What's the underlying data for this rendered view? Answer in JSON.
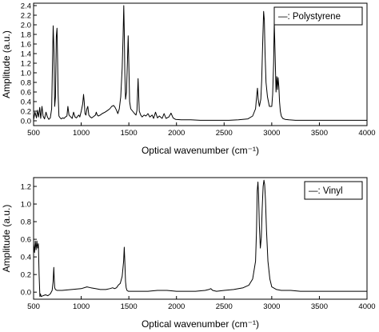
{
  "chart_data": [
    {
      "type": "line",
      "xlabel": "Optical wavenumber (cm⁻¹)",
      "ylabel": "Amplitude (a.u.)",
      "xlim": [
        500,
        4000
      ],
      "ylim": [
        -0.1,
        2.45
      ],
      "xticks": [
        "500",
        "1000",
        "1500",
        "2000",
        "2500",
        "3000",
        "3500",
        "4000"
      ],
      "yticks": [
        "0.0",
        "0.2",
        "0.4",
        "0.6",
        "0.8",
        "1.0",
        "1.2",
        "1.4",
        "1.6",
        "1.8",
        "2.0",
        "2.2",
        "2.4"
      ],
      "grid": false,
      "legend_position": "top-right",
      "series": [
        {
          "name": "—: Polystyrene",
          "x": [
            500,
            515,
            530,
            540,
            552,
            565,
            575,
            588,
            600,
            615,
            630,
            645,
            660,
            675,
            690,
            698,
            706,
            714,
            722,
            730,
            738,
            746,
            752,
            758,
            766,
            775,
            790,
            805,
            820,
            835,
            850,
            860,
            872,
            890,
            905,
            920,
            935,
            950,
            965,
            975,
            985,
            1000,
            1015,
            1025,
            1032,
            1040,
            1050,
            1060,
            1069,
            1080,
            1095,
            1110,
            1130,
            1150,
            1158,
            1168,
            1180,
            1200,
            1220,
            1250,
            1280,
            1300,
            1320,
            1340,
            1355,
            1370,
            1385,
            1400,
            1415,
            1430,
            1440,
            1447,
            1452,
            1458,
            1465,
            1475,
            1485,
            1493,
            1500,
            1508,
            1520,
            1540,
            1560,
            1575,
            1585,
            1597,
            1602,
            1610,
            1625,
            1640,
            1660,
            1680,
            1700,
            1720,
            1745,
            1760,
            1780,
            1800,
            1820,
            1850,
            1870,
            1890,
            1920,
            1943,
            1965,
            1990,
            2050,
            2150,
            2250,
            2400,
            2550,
            2650,
            2750,
            2800,
            2830,
            2843,
            2850,
            2858,
            2870,
            2885,
            2895,
            2905,
            2915,
            2922,
            2930,
            2940,
            2955,
            2975,
            3000,
            3010,
            3020,
            3026,
            3034,
            3045,
            3052,
            3060,
            3067,
            3075,
            3082,
            3090,
            3100,
            3115,
            3140,
            3180,
            3250,
            3400,
            3600,
            3800,
            4000
          ],
          "values": [
            0.02,
            0.18,
            0.06,
            0.22,
            0.08,
            0.28,
            0.05,
            0.3,
            0.1,
            0.04,
            0.18,
            0.08,
            0.03,
            0.06,
            0.25,
            1.15,
            1.98,
            1.45,
            0.3,
            0.5,
            1.75,
            1.93,
            1.3,
            0.55,
            0.1,
            0.07,
            0.04,
            0.06,
            0.05,
            0.08,
            0.1,
            0.3,
            0.12,
            0.08,
            0.05,
            0.18,
            0.08,
            0.06,
            0.1,
            0.12,
            0.08,
            0.2,
            0.35,
            0.55,
            0.38,
            0.15,
            0.12,
            0.25,
            0.3,
            0.12,
            0.08,
            0.06,
            0.09,
            0.12,
            0.18,
            0.12,
            0.1,
            0.12,
            0.15,
            0.18,
            0.22,
            0.25,
            0.3,
            0.32,
            0.28,
            0.22,
            0.15,
            0.25,
            0.5,
            1.1,
            1.8,
            2.4,
            1.9,
            1.0,
            0.45,
            0.6,
            1.25,
            1.77,
            1.2,
            0.4,
            0.25,
            0.2,
            0.15,
            0.12,
            0.22,
            0.88,
            0.6,
            0.2,
            0.12,
            0.08,
            0.12,
            0.1,
            0.15,
            0.08,
            0.12,
            0.05,
            0.18,
            0.06,
            0.1,
            0.05,
            0.15,
            0.05,
            0.08,
            0.16,
            0.06,
            0.03,
            0.02,
            0.02,
            0.01,
            0.01,
            0.01,
            0.02,
            0.04,
            0.1,
            0.25,
            0.55,
            0.68,
            0.45,
            0.3,
            0.45,
            0.85,
            1.6,
            2.28,
            2.1,
            1.4,
            0.8,
            0.5,
            0.3,
            0.3,
            0.55,
            1.2,
            2.05,
            1.5,
            0.6,
            0.92,
            0.65,
            0.9,
            0.7,
            0.4,
            0.2,
            0.1,
            0.05,
            0.03,
            0.02,
            0.01,
            0.01,
            0.01,
            0.01,
            0.01
          ]
        }
      ]
    },
    {
      "type": "line",
      "xlabel": "Optical wavenumber (cm⁻¹)",
      "ylabel": "Amplitude (a.u.)",
      "xlim": [
        500,
        4000
      ],
      "ylim": [
        -0.08,
        1.3
      ],
      "xticks": [
        "500",
        "1000",
        "1500",
        "2000",
        "2500",
        "3000",
        "3500",
        "4000"
      ],
      "yticks": [
        "0.0",
        "0.2",
        "0.4",
        "0.6",
        "0.8",
        "1.0",
        "1.2"
      ],
      "grid": false,
      "legend_position": "top-right",
      "series": [
        {
          "name": "—: Vinyl",
          "x": [
            500,
            510,
            518,
            526,
            534,
            542,
            550,
            558,
            566,
            572,
            580,
            600,
            625,
            650,
            675,
            695,
            705,
            712,
            716,
            722,
            730,
            745,
            800,
            900,
            1000,
            1060,
            1100,
            1150,
            1200,
            1260,
            1300,
            1330,
            1350,
            1370,
            1390,
            1410,
            1430,
            1445,
            1452,
            1458,
            1465,
            1472,
            1480,
            1495,
            1520,
            1600,
            1700,
            1800,
            1900,
            2000,
            2100,
            2200,
            2300,
            2340,
            2360,
            2380,
            2420,
            2500,
            2600,
            2700,
            2760,
            2800,
            2830,
            2840,
            2848,
            2855,
            2862,
            2870,
            2880,
            2890,
            2900,
            2910,
            2918,
            2926,
            2934,
            2945,
            2960,
            2980,
            3000,
            3050,
            3100,
            3200,
            3300,
            3500,
            3700,
            3900,
            4000
          ],
          "values": [
            0.55,
            0.45,
            0.58,
            0.48,
            0.58,
            0.5,
            0.55,
            0.2,
            -0.05,
            -0.02,
            -0.05,
            -0.04,
            -0.03,
            -0.04,
            -0.02,
            0.02,
            0.12,
            0.28,
            0.18,
            0.05,
            0.03,
            0.02,
            0.02,
            0.03,
            0.04,
            0.06,
            0.05,
            0.04,
            0.03,
            0.03,
            0.04,
            0.05,
            0.04,
            0.05,
            0.08,
            0.1,
            0.18,
            0.35,
            0.51,
            0.35,
            0.12,
            0.05,
            0.02,
            0.01,
            0.01,
            0.01,
            0.01,
            0.02,
            0.02,
            0.01,
            0.01,
            0.01,
            0.02,
            0.03,
            0.04,
            0.02,
            0.01,
            0.02,
            0.03,
            0.05,
            0.08,
            0.15,
            0.35,
            0.7,
            1.15,
            1.25,
            1.1,
            0.75,
            0.5,
            0.62,
            0.95,
            1.2,
            1.27,
            1.22,
            1.05,
            0.7,
            0.35,
            0.15,
            0.06,
            0.03,
            0.02,
            0.02,
            0.01,
            0.01,
            0.01,
            0.01,
            0.01
          ]
        }
      ]
    }
  ]
}
